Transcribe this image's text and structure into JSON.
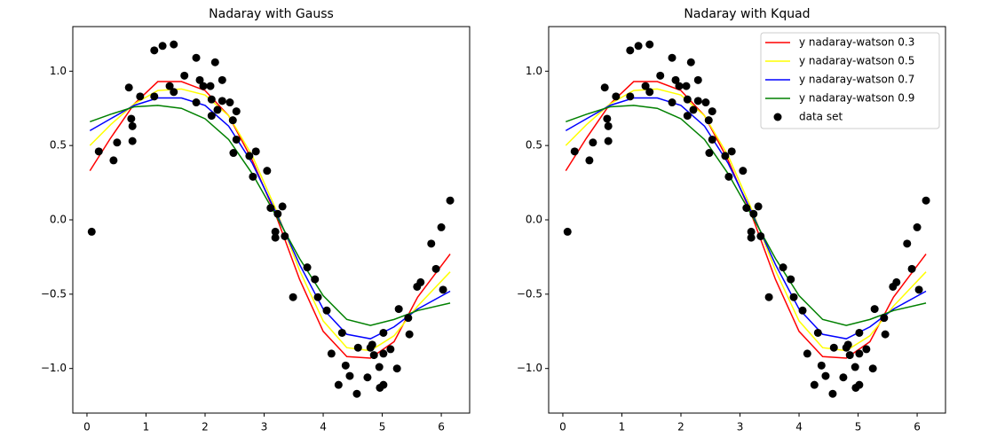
{
  "chart_data": [
    {
      "type": "line",
      "title": "Nadaray with Gauss",
      "x": [
        0.05,
        0.4,
        0.8,
        1.2,
        1.6,
        2.0,
        2.4,
        2.8,
        3.2,
        3.6,
        4.0,
        4.4,
        4.8,
        5.2,
        5.6,
        6.15
      ],
      "series": [
        {
          "name": "y nadaray-watson 0.3",
          "color": "#ff0000",
          "values": [
            0.33,
            0.55,
            0.78,
            0.93,
            0.93,
            0.87,
            0.7,
            0.4,
            0.03,
            -0.4,
            -0.75,
            -0.92,
            -0.93,
            -0.82,
            -0.52,
            -0.23
          ]
        },
        {
          "name": "y nadaray-watson 0.5",
          "color": "#ffff00",
          "values": [
            0.5,
            0.64,
            0.78,
            0.87,
            0.88,
            0.84,
            0.7,
            0.43,
            0.07,
            -0.34,
            -0.68,
            -0.86,
            -0.88,
            -0.78,
            -0.58,
            -0.35
          ]
        },
        {
          "name": "y nadaray-watson 0.7",
          "color": "#0000ff",
          "values": [
            0.6,
            0.68,
            0.77,
            0.82,
            0.82,
            0.77,
            0.63,
            0.38,
            0.05,
            -0.3,
            -0.6,
            -0.77,
            -0.8,
            -0.72,
            -0.6,
            -0.48
          ]
        },
        {
          "name": "y nadaray-watson 0.9",
          "color": "#008000",
          "values": [
            0.66,
            0.71,
            0.76,
            0.77,
            0.75,
            0.68,
            0.54,
            0.31,
            0.03,
            -0.26,
            -0.51,
            -0.67,
            -0.71,
            -0.67,
            -0.61,
            -0.56
          ]
        }
      ],
      "scatter": {
        "name": "data set",
        "color": "#000000",
        "x": [
          0.08,
          0.2,
          0.45,
          0.51,
          0.71,
          0.75,
          0.77,
          0.77,
          0.9,
          1.14,
          1.28,
          1.47,
          1.14,
          1.4,
          1.47,
          1.65,
          1.85,
          1.85,
          1.91,
          1.97,
          2.09,
          2.17,
          2.11,
          2.11,
          2.21,
          2.29,
          2.29,
          2.42,
          2.47,
          2.53,
          2.53,
          2.48,
          2.75,
          2.81,
          2.86,
          3.05,
          3.11,
          3.19,
          3.19,
          3.23,
          3.31,
          3.35,
          3.49,
          3.73,
          3.86,
          3.91,
          4.06,
          4.14,
          4.26,
          4.32,
          4.38,
          4.45,
          4.57,
          4.59,
          4.75,
          4.8,
          4.83,
          4.86,
          4.95,
          4.96,
          5.02,
          5.02,
          5.02,
          5.14,
          5.25,
          5.28,
          5.44,
          5.46,
          5.59,
          5.65,
          5.83,
          5.91,
          6.0,
          6.03,
          6.15
        ],
        "values": [
          -0.08,
          0.46,
          0.4,
          0.52,
          0.89,
          0.68,
          0.63,
          0.53,
          0.83,
          1.14,
          1.17,
          1.18,
          0.83,
          0.9,
          0.86,
          0.97,
          1.09,
          0.79,
          0.94,
          0.9,
          0.9,
          1.06,
          0.81,
          0.7,
          0.74,
          0.94,
          0.8,
          0.79,
          0.67,
          0.73,
          0.54,
          0.45,
          0.43,
          0.29,
          0.46,
          0.33,
          0.08,
          -0.08,
          -0.12,
          0.04,
          0.09,
          -0.11,
          -0.52,
          -0.32,
          -0.4,
          -0.52,
          -0.61,
          -0.9,
          -1.11,
          -0.76,
          -0.98,
          -1.05,
          -1.17,
          -0.86,
          -1.06,
          -0.86,
          -0.84,
          -0.91,
          -0.99,
          -1.13,
          -0.76,
          -1.11,
          -0.9,
          -0.87,
          -1.0,
          -0.6,
          -0.66,
          -0.77,
          -0.45,
          -0.42,
          -0.16,
          -0.33,
          -0.05,
          -0.47,
          0.13
        ]
      },
      "xlim": [
        -0.24,
        6.48
      ],
      "ylim": [
        -1.3,
        1.3
      ],
      "xticks": [
        0,
        1,
        2,
        3,
        4,
        5,
        6
      ],
      "yticks": [
        {
          "value": -1,
          "label": "−1.0"
        },
        {
          "value": -0.5,
          "label": "−0.5"
        },
        {
          "value": 0,
          "label": "0.0"
        },
        0.5,
        {
          "value": 1,
          "label": "1.0"
        }
      ]
    },
    {
      "type": "line",
      "title": "Nadaray with Kquad",
      "legend": "upper right",
      "x": [
        0.05,
        0.4,
        0.8,
        1.2,
        1.6,
        2.0,
        2.4,
        2.8,
        3.2,
        3.6,
        4.0,
        4.4,
        4.8,
        5.2,
        5.6,
        6.15
      ],
      "series": [
        {
          "name": "y nadaray-watson 0.3",
          "color": "#ff0000",
          "values": [
            0.33,
            0.55,
            0.78,
            0.93,
            0.93,
            0.87,
            0.7,
            0.4,
            0.03,
            -0.4,
            -0.75,
            -0.92,
            -0.93,
            -0.82,
            -0.52,
            -0.23
          ]
        },
        {
          "name": "y nadaray-watson 0.5",
          "color": "#ffff00",
          "values": [
            0.5,
            0.64,
            0.78,
            0.87,
            0.88,
            0.84,
            0.7,
            0.43,
            0.07,
            -0.34,
            -0.68,
            -0.86,
            -0.88,
            -0.78,
            -0.58,
            -0.35
          ]
        },
        {
          "name": "y nadaray-watson 0.7",
          "color": "#0000ff",
          "values": [
            0.6,
            0.68,
            0.77,
            0.82,
            0.82,
            0.77,
            0.63,
            0.38,
            0.05,
            -0.3,
            -0.6,
            -0.77,
            -0.8,
            -0.72,
            -0.6,
            -0.48
          ]
        },
        {
          "name": "y nadaray-watson 0.9",
          "color": "#008000",
          "values": [
            0.66,
            0.71,
            0.76,
            0.77,
            0.75,
            0.68,
            0.54,
            0.31,
            0.03,
            -0.26,
            -0.51,
            -0.67,
            -0.71,
            -0.67,
            -0.61,
            -0.56
          ]
        }
      ],
      "scatter": {
        "name": "data set",
        "color": "#000000",
        "x": [
          0.08,
          0.2,
          0.45,
          0.51,
          0.71,
          0.75,
          0.77,
          0.77,
          0.9,
          1.14,
          1.28,
          1.47,
          1.14,
          1.4,
          1.47,
          1.65,
          1.85,
          1.85,
          1.91,
          1.97,
          2.09,
          2.17,
          2.11,
          2.11,
          2.21,
          2.29,
          2.29,
          2.42,
          2.47,
          2.53,
          2.53,
          2.48,
          2.75,
          2.81,
          2.86,
          3.05,
          3.11,
          3.19,
          3.19,
          3.23,
          3.31,
          3.35,
          3.49,
          3.73,
          3.86,
          3.91,
          4.06,
          4.14,
          4.26,
          4.32,
          4.38,
          4.45,
          4.57,
          4.59,
          4.75,
          4.8,
          4.83,
          4.86,
          4.95,
          4.96,
          5.02,
          5.02,
          5.02,
          5.14,
          5.25,
          5.28,
          5.44,
          5.46,
          5.59,
          5.65,
          5.83,
          5.91,
          6.0,
          6.03,
          6.15
        ],
        "values": [
          -0.08,
          0.46,
          0.4,
          0.52,
          0.89,
          0.68,
          0.63,
          0.53,
          0.83,
          1.14,
          1.17,
          1.18,
          0.83,
          0.9,
          0.86,
          0.97,
          1.09,
          0.79,
          0.94,
          0.9,
          0.9,
          1.06,
          0.81,
          0.7,
          0.74,
          0.94,
          0.8,
          0.79,
          0.67,
          0.73,
          0.54,
          0.45,
          0.43,
          0.29,
          0.46,
          0.33,
          0.08,
          -0.08,
          -0.12,
          0.04,
          0.09,
          -0.11,
          -0.52,
          -0.32,
          -0.4,
          -0.52,
          -0.61,
          -0.9,
          -1.11,
          -0.76,
          -0.98,
          -1.05,
          -1.17,
          -0.86,
          -1.06,
          -0.86,
          -0.84,
          -0.91,
          -0.99,
          -1.13,
          -0.76,
          -1.11,
          -0.9,
          -0.87,
          -1.0,
          -0.6,
          -0.66,
          -0.77,
          -0.45,
          -0.42,
          -0.16,
          -0.33,
          -0.05,
          -0.47,
          0.13
        ]
      },
      "xlim": [
        -0.24,
        6.48
      ],
      "ylim": [
        -1.3,
        1.3
      ],
      "xticks": [
        0,
        1,
        2,
        3,
        4,
        5,
        6
      ],
      "yticks": [
        {
          "value": -1,
          "label": "−1.0"
        },
        {
          "value": -0.5,
          "label": "−0.5"
        },
        {
          "value": 0,
          "label": "0.0"
        },
        0.5,
        {
          "value": 1,
          "label": "1.0"
        }
      ]
    }
  ]
}
